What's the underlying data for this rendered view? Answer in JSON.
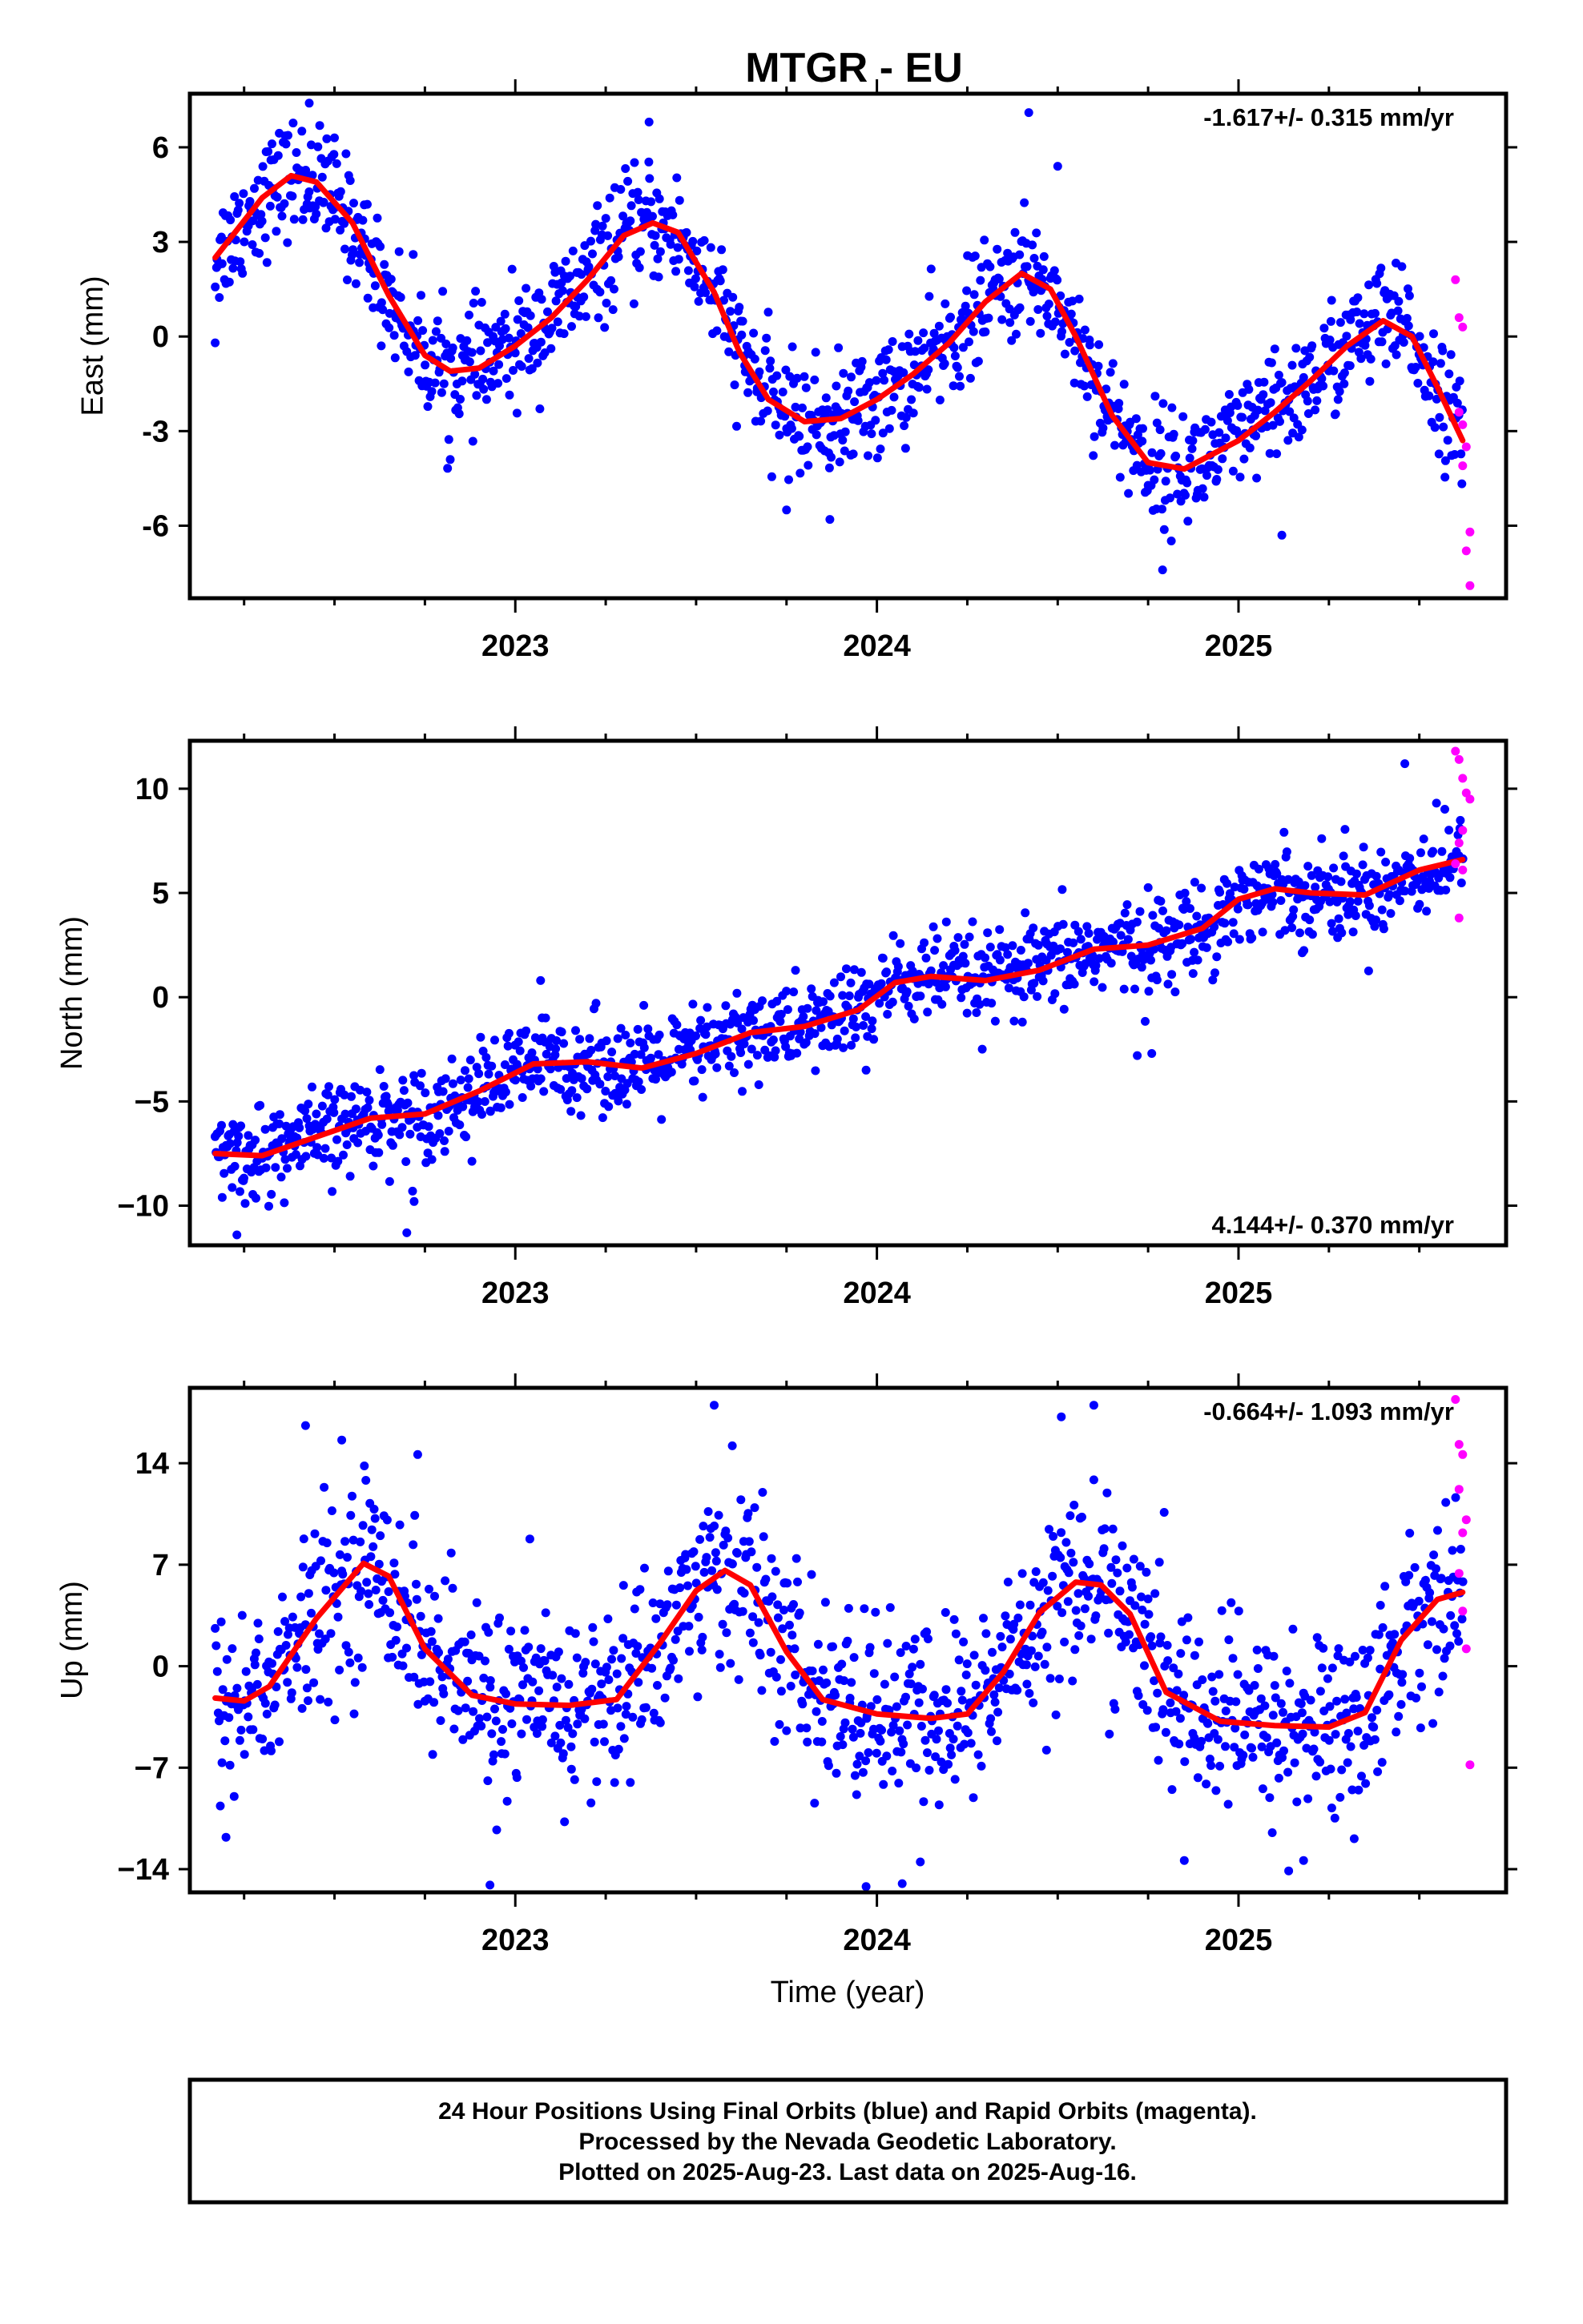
{
  "figure": {
    "title": "MTGR - EU",
    "xlabel": "Time (year)",
    "footer": [
      "24 Hour Positions Using Final Orbits (blue) and Rapid Orbits (magenta).",
      "Processed by the Nevada Geodetic Laboratory.",
      "Plotted on 2025-Aug-23. Last data on 2025-Aug-16."
    ],
    "colors": {
      "final_orbits": "#0000ff",
      "rapid_orbits": "#ff00ff",
      "model": "#ff0000",
      "frame": "#000000"
    }
  },
  "chart_data": [
    {
      "type": "scatter",
      "ylabel": "East (mm)",
      "rate_label": "-1.617+/- 0.315 mm/yr",
      "rate_placement": "top-right",
      "xlim": [
        2022.1,
        2025.74
      ],
      "ylim": [
        -8.3,
        7.7
      ],
      "xticks": [
        2023,
        2024,
        2025
      ],
      "xtick_labels": [
        "2023",
        "2024",
        "2025"
      ],
      "yticks": [
        -6,
        -3,
        0,
        3,
        6
      ],
      "ytick_labels": [
        "-6",
        "-3",
        "0",
        "3",
        "6"
      ],
      "grid": false,
      "model_curve": {
        "x": [
          2022.17,
          2022.3,
          2022.38,
          2022.45,
          2022.55,
          2022.65,
          2022.75,
          2022.82,
          2022.9,
          2023.0,
          2023.1,
          2023.2,
          2023.3,
          2023.38,
          2023.45,
          2023.55,
          2023.62,
          2023.7,
          2023.8,
          2023.9,
          2024.0,
          2024.1,
          2024.2,
          2024.3,
          2024.4,
          2024.48,
          2024.55,
          2024.65,
          2024.75,
          2024.85,
          2025.0,
          2025.1,
          2025.2,
          2025.3,
          2025.4,
          2025.48,
          2025.55,
          2025.62
        ],
        "y": [
          2.5,
          4.4,
          5.1,
          4.9,
          3.6,
          1.3,
          -0.6,
          -1.1,
          -1.0,
          -0.3,
          0.6,
          1.8,
          3.2,
          3.6,
          3.3,
          1.4,
          -0.5,
          -2.0,
          -2.7,
          -2.6,
          -2.0,
          -1.2,
          -0.2,
          1.1,
          2.0,
          1.5,
          0.0,
          -2.5,
          -4.0,
          -4.2,
          -3.3,
          -2.4,
          -1.4,
          -0.3,
          0.5,
          0.0,
          -1.6,
          -3.3
        ]
      },
      "final_orbits": {
        "scatter_sd": 0.9,
        "outliers": [
          [
            2022.43,
            7.4
          ],
          [
            2022.5,
            6.3
          ],
          [
            2023.37,
            6.8
          ],
          [
            2024.42,
            7.1
          ],
          [
            2024.5,
            5.4
          ],
          [
            2023.87,
            -5.8
          ],
          [
            2024.79,
            -7.4
          ],
          [
            2025.12,
            -6.3
          ],
          [
            2022.17,
            -0.2
          ],
          [
            2022.82,
            -3.9
          ],
          [
            2023.75,
            -5.5
          ]
        ]
      },
      "rapid_orbits": {
        "x": [
          2025.6,
          2025.61,
          2025.62,
          2025.61,
          2025.62,
          2025.63,
          2025.62,
          2025.64,
          2025.63,
          2025.64
        ],
        "y": [
          1.8,
          0.6,
          0.3,
          -2.4,
          -2.8,
          -3.5,
          -4.1,
          -6.2,
          -6.8,
          -7.9
        ]
      }
    },
    {
      "type": "scatter",
      "ylabel": "North (mm)",
      "rate_label": "4.144+/- 0.370 mm/yr",
      "rate_placement": "bottom-right",
      "xlim": [
        2022.1,
        2025.74
      ],
      "ylim": [
        -11.9,
        12.3
      ],
      "xticks": [
        2023,
        2024,
        2025
      ],
      "xtick_labels": [
        "2023",
        "2024",
        "2025"
      ],
      "yticks": [
        -10,
        -5,
        0,
        5,
        10
      ],
      "ytick_labels": [
        "−10",
        "−5",
        "0",
        "5",
        "10"
      ],
      "grid": false,
      "model_curve": {
        "x": [
          2022.17,
          2022.3,
          2022.45,
          2022.6,
          2022.75,
          2022.9,
          2023.05,
          2023.2,
          2023.35,
          2023.5,
          2023.65,
          2023.8,
          2023.95,
          2024.05,
          2024.15,
          2024.3,
          2024.45,
          2024.6,
          2024.75,
          2024.9,
          2025.0,
          2025.1,
          2025.2,
          2025.35,
          2025.5,
          2025.62
        ],
        "y": [
          -7.5,
          -7.6,
          -6.7,
          -5.8,
          -5.6,
          -4.5,
          -3.2,
          -3.1,
          -3.4,
          -2.7,
          -1.7,
          -1.4,
          -0.6,
          0.7,
          1.0,
          0.8,
          1.3,
          2.3,
          2.5,
          3.3,
          4.7,
          5.2,
          5.0,
          4.9,
          6.1,
          6.6
        ]
      },
      "final_orbits": {
        "scatter_sd": 1.1,
        "outliers": [
          [
            2022.23,
            -11.4
          ],
          [
            2022.7,
            -11.3
          ],
          [
            2022.72,
            -9.8
          ],
          [
            2025.46,
            11.2
          ],
          [
            2024.76,
            -2.7
          ],
          [
            2024.72,
            -2.8
          ],
          [
            2023.07,
            0.8
          ],
          [
            2023.97,
            -3.5
          ]
        ]
      },
      "rapid_orbits": {
        "x": [
          2025.6,
          2025.61,
          2025.62,
          2025.63,
          2025.64,
          2025.62,
          2025.61,
          2025.6,
          2025.62,
          2025.61
        ],
        "y": [
          11.8,
          11.4,
          10.5,
          9.8,
          9.5,
          8.0,
          7.4,
          6.4,
          6.1,
          3.8
        ]
      }
    },
    {
      "type": "scatter",
      "ylabel": "Up (mm)",
      "rate_label": "-0.664+/- 1.093 mm/yr",
      "rate_placement": "top-right",
      "xlim": [
        2022.1,
        2025.74
      ],
      "ylim": [
        -15.6,
        19.2
      ],
      "xticks": [
        2023,
        2024,
        2025
      ],
      "xtick_labels": [
        "2023",
        "2024",
        "2025"
      ],
      "yticks": [
        -14,
        -7,
        0,
        7,
        14
      ],
      "ytick_labels": [
        "−14",
        "−7",
        "0",
        "7",
        "14"
      ],
      "grid": false,
      "model_curve": {
        "x": [
          2022.17,
          2022.25,
          2022.32,
          2022.45,
          2022.58,
          2022.65,
          2022.75,
          2022.88,
          2023.0,
          2023.15,
          2023.28,
          2023.4,
          2023.5,
          2023.58,
          2023.65,
          2023.75,
          2023.85,
          2024.0,
          2024.15,
          2024.25,
          2024.35,
          2024.45,
          2024.55,
          2024.62,
          2024.7,
          2024.8,
          2024.95,
          2025.1,
          2025.25,
          2025.35,
          2025.45,
          2025.55,
          2025.62
        ],
        "y": [
          -2.2,
          -2.4,
          -1.4,
          3.3,
          7.1,
          6.2,
          1.2,
          -2.0,
          -2.6,
          -2.7,
          -2.3,
          1.6,
          5.2,
          6.6,
          5.6,
          1.0,
          -2.3,
          -3.3,
          -3.6,
          -3.3,
          -0.4,
          3.7,
          5.8,
          5.6,
          3.6,
          -1.8,
          -3.8,
          -4.1,
          -4.2,
          -3.2,
          1.8,
          4.6,
          5.1
        ]
      },
      "final_orbits": {
        "scatter_sd": 3.2,
        "outliers": [
          [
            2022.42,
            16.6
          ],
          [
            2022.52,
            15.6
          ],
          [
            2023.55,
            18.0
          ],
          [
            2023.6,
            15.2
          ],
          [
            2024.6,
            18.0
          ],
          [
            2024.51,
            17.2
          ],
          [
            2022.73,
            14.6
          ],
          [
            2022.93,
            -15.1
          ],
          [
            2023.97,
            -15.2
          ],
          [
            2024.07,
            -15.0
          ],
          [
            2024.12,
            -13.5
          ],
          [
            2024.85,
            -13.4
          ],
          [
            2022.2,
            -11.8
          ],
          [
            2025.18,
            -13.4
          ],
          [
            2025.32,
            -11.9
          ]
        ]
      },
      "rapid_orbits": {
        "x": [
          2025.6,
          2025.61,
          2025.62,
          2025.61,
          2025.63,
          2025.62,
          2025.61,
          2025.62,
          2025.63,
          2025.64
        ],
        "y": [
          18.4,
          15.3,
          14.6,
          12.2,
          10.1,
          9.2,
          6.4,
          3.8,
          1.2,
          -6.8
        ]
      }
    }
  ]
}
